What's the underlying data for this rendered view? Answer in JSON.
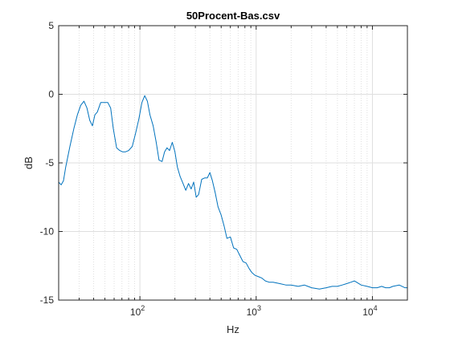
{
  "chart_data": {
    "type": "line",
    "title": "50Procent-Bas.csv",
    "xlabel": "Hz",
    "ylabel": "dB",
    "xscale": "log",
    "xlim": [
      20,
      20000
    ],
    "ylim": [
      -15,
      5
    ],
    "x_ticks": [
      {
        "base": "10",
        "exp": "2",
        "value": 100
      },
      {
        "base": "10",
        "exp": "3",
        "value": 1000
      },
      {
        "base": "10",
        "exp": "4",
        "value": 10000
      }
    ],
    "y_ticks": [
      {
        "label": "5",
        "value": 5
      },
      {
        "label": "0",
        "value": 0
      },
      {
        "label": "-5",
        "value": -5
      },
      {
        "label": "-10",
        "value": -10
      },
      {
        "label": "-15",
        "value": -15
      }
    ],
    "grid": "major and minor (dotted)",
    "colors": {
      "series": "#0072bd",
      "grid": "#dfdfdf",
      "axis": "#262626"
    },
    "series": [
      {
        "x": [
          20,
          21,
          22,
          23,
          25,
          27,
          29,
          31,
          33,
          35,
          37,
          39,
          41,
          43,
          46,
          50,
          53,
          56,
          59,
          63,
          67,
          71,
          75,
          80,
          86,
          92,
          98,
          104,
          110,
          116,
          122,
          130,
          138,
          146,
          155,
          163,
          171,
          180,
          190,
          200,
          210,
          222,
          235,
          248,
          262,
          276,
          290,
          305,
          320,
          340,
          360,
          380,
          400,
          420,
          445,
          470,
          500,
          530,
          560,
          600,
          640,
          680,
          720,
          770,
          820,
          870,
          920,
          980,
          1050,
          1120,
          1200,
          1300,
          1400,
          1600,
          1800,
          2000,
          2300,
          2600,
          3000,
          3500,
          4000,
          4500,
          5000,
          5500,
          6000,
          6500,
          7000,
          8000,
          9000,
          10000,
          11000,
          12000,
          13000,
          14000,
          15000,
          17000,
          19000,
          20000
        ],
        "y": [
          -6.4,
          -6.6,
          -6.3,
          -5.3,
          -3.8,
          -2.5,
          -1.5,
          -0.8,
          -0.5,
          -1.0,
          -1.9,
          -2.3,
          -1.5,
          -1.3,
          -0.6,
          -0.6,
          -0.6,
          -1.0,
          -2.5,
          -3.9,
          -4.1,
          -4.2,
          -4.2,
          -4.1,
          -3.8,
          -2.8,
          -1.8,
          -0.6,
          -0.1,
          -0.5,
          -1.5,
          -2.3,
          -3.5,
          -4.8,
          -4.9,
          -4.2,
          -3.9,
          -4.1,
          -3.5,
          -4.2,
          -5.3,
          -6.0,
          -6.5,
          -7.0,
          -6.5,
          -6.9,
          -6.4,
          -7.5,
          -7.3,
          -6.2,
          -6.1,
          -6.1,
          -5.7,
          -6.3,
          -7.2,
          -8.2,
          -8.8,
          -9.6,
          -10.5,
          -10.4,
          -11.2,
          -11.3,
          -11.7,
          -12.2,
          -12.3,
          -12.7,
          -13.0,
          -13.2,
          -13.3,
          -13.4,
          -13.6,
          -13.7,
          -13.7,
          -13.8,
          -13.9,
          -13.9,
          -14.0,
          -13.9,
          -14.1,
          -14.2,
          -14.1,
          -14.0,
          -14.0,
          -13.9,
          -13.8,
          -13.7,
          -13.6,
          -13.9,
          -14.0,
          -14.1,
          -14.1,
          -14.0,
          -14.1,
          -14.1,
          -14.0,
          -13.9,
          -14.1,
          -14.1
        ]
      }
    ]
  }
}
